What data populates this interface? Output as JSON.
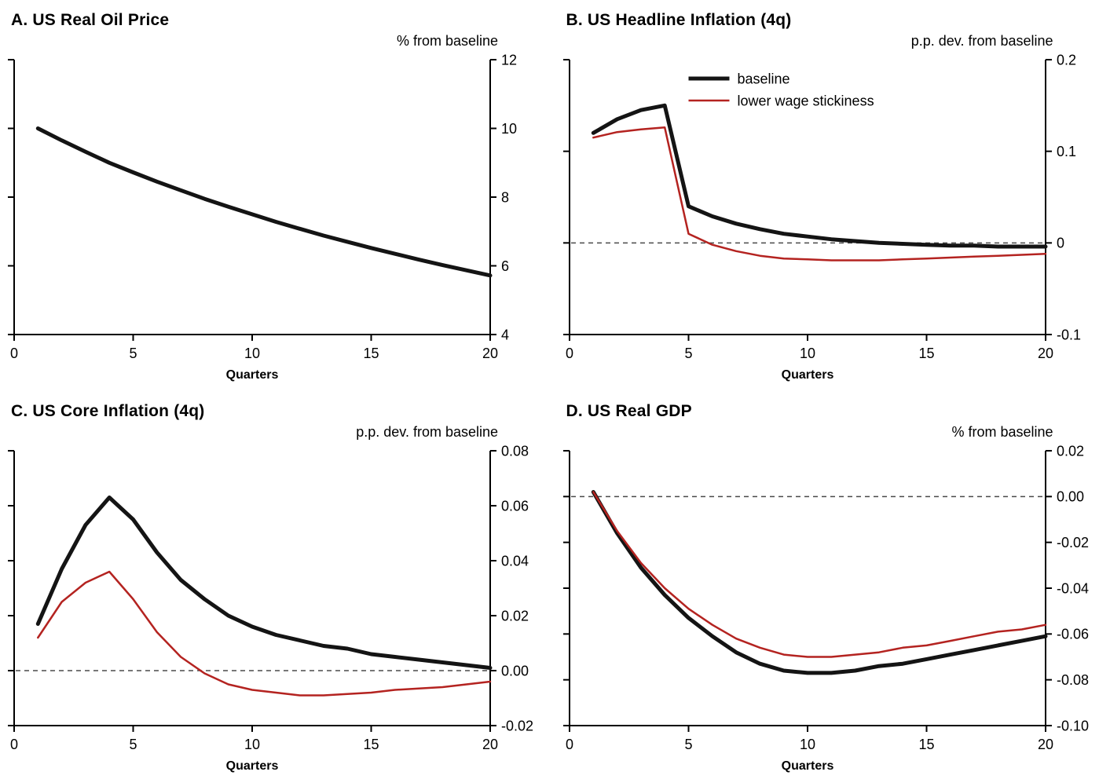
{
  "figure": {
    "background": "#ffffff",
    "accent_black": "#141414",
    "accent_red": "#b42320"
  },
  "chart_data": [
    {
      "id": "a",
      "type": "line",
      "title": "A. US Real Oil Price",
      "unit": "% from baseline",
      "xlabel": "Quarters",
      "xlim": [
        0,
        20
      ],
      "xticks": [
        0,
        5,
        10,
        15,
        20
      ],
      "xtick_labels": [
        "0",
        "5",
        "10",
        "15",
        "20"
      ],
      "ylim": [
        4,
        12
      ],
      "yticks": [
        4,
        6,
        8,
        10,
        12
      ],
      "ytick_labels": [
        "4",
        "6",
        "8",
        "10",
        "12"
      ],
      "zero_line": false,
      "series": [
        {
          "name": "baseline",
          "color": "#141414",
          "width": 5,
          "x_start": 1,
          "values": [
            10.0,
            9.65,
            9.32,
            9.0,
            8.72,
            8.45,
            8.2,
            7.95,
            7.72,
            7.5,
            7.28,
            7.08,
            6.88,
            6.7,
            6.52,
            6.35,
            6.18,
            6.02,
            5.87,
            5.72
          ]
        }
      ]
    },
    {
      "id": "b",
      "type": "line",
      "title": "B. US Headline Inflation (4q)",
      "unit": "p.p. dev. from baseline",
      "xlabel": "Quarters",
      "xlim": [
        0,
        20
      ],
      "xticks": [
        0,
        5,
        10,
        15,
        20
      ],
      "xtick_labels": [
        "0",
        "5",
        "10",
        "15",
        "20"
      ],
      "ylim": [
        -0.1,
        0.2
      ],
      "yticks": [
        -0.1,
        0,
        0.1,
        0.2
      ],
      "ytick_labels": [
        "-0.1",
        "0",
        "0.1",
        "0.2"
      ],
      "zero_line": true,
      "legend": [
        {
          "label": "baseline",
          "color": "#141414",
          "width": 5
        },
        {
          "label": "lower wage stickiness",
          "color": "#b42320",
          "width": 2.5
        }
      ],
      "series": [
        {
          "name": "baseline",
          "color": "#141414",
          "width": 5,
          "x_start": 1,
          "values": [
            0.12,
            0.135,
            0.145,
            0.15,
            0.04,
            0.029,
            0.021,
            0.015,
            0.01,
            0.007,
            0.004,
            0.002,
            0.0,
            -0.001,
            -0.002,
            -0.003,
            -0.003,
            -0.004,
            -0.004,
            -0.004
          ]
        },
        {
          "name": "lower wage stickiness",
          "color": "#b42320",
          "width": 2.5,
          "x_start": 1,
          "values": [
            0.115,
            0.121,
            0.124,
            0.126,
            0.01,
            -0.002,
            -0.009,
            -0.014,
            -0.017,
            -0.018,
            -0.019,
            -0.019,
            -0.019,
            -0.018,
            -0.017,
            -0.016,
            -0.015,
            -0.014,
            -0.013,
            -0.012
          ]
        }
      ]
    },
    {
      "id": "c",
      "type": "line",
      "title": "C. US Core Inflation (4q)",
      "unit": "p.p. dev. from baseline",
      "xlabel": "Quarters",
      "xlim": [
        0,
        20
      ],
      "xticks": [
        0,
        5,
        10,
        15,
        20
      ],
      "xtick_labels": [
        "0",
        "5",
        "10",
        "15",
        "20"
      ],
      "ylim": [
        -0.02,
        0.08
      ],
      "yticks": [
        -0.02,
        0,
        0.02,
        0.04,
        0.06,
        0.08
      ],
      "ytick_labels": [
        "-0.02",
        "0.00",
        "0.02",
        "0.04",
        "0.06",
        "0.08"
      ],
      "zero_line": true,
      "series": [
        {
          "name": "baseline",
          "color": "#141414",
          "width": 5,
          "x_start": 1,
          "values": [
            0.017,
            0.037,
            0.053,
            0.063,
            0.055,
            0.043,
            0.033,
            0.026,
            0.02,
            0.016,
            0.013,
            0.011,
            0.009,
            0.008,
            0.006,
            0.005,
            0.004,
            0.003,
            0.002,
            0.001
          ]
        },
        {
          "name": "lower wage stickiness",
          "color": "#b42320",
          "width": 2.5,
          "x_start": 1,
          "values": [
            0.012,
            0.025,
            0.032,
            0.036,
            0.026,
            0.014,
            0.005,
            -0.001,
            -0.005,
            -0.007,
            -0.008,
            -0.009,
            -0.009,
            -0.0085,
            -0.008,
            -0.007,
            -0.0065,
            -0.006,
            -0.005,
            -0.004
          ]
        }
      ]
    },
    {
      "id": "d",
      "type": "line",
      "title": "D. US Real GDP",
      "unit": "% from baseline",
      "xlabel": "Quarters",
      "xlim": [
        0,
        20
      ],
      "xticks": [
        0,
        5,
        10,
        15,
        20
      ],
      "xtick_labels": [
        "0",
        "5",
        "10",
        "15",
        "20"
      ],
      "ylim": [
        -0.1,
        0.02
      ],
      "yticks": [
        -0.1,
        -0.08,
        -0.06,
        -0.04,
        -0.02,
        0,
        0.02
      ],
      "ytick_labels": [
        "-0.10",
        "-0.08",
        "-0.06",
        "-0.04",
        "-0.02",
        "0.00",
        "0.02"
      ],
      "zero_line": true,
      "series": [
        {
          "name": "baseline",
          "color": "#141414",
          "width": 5,
          "x_start": 1,
          "values": [
            0.002,
            -0.016,
            -0.031,
            -0.043,
            -0.053,
            -0.061,
            -0.068,
            -0.073,
            -0.076,
            -0.077,
            -0.077,
            -0.076,
            -0.074,
            -0.073,
            -0.071,
            -0.069,
            -0.067,
            -0.065,
            -0.063,
            -0.061
          ]
        },
        {
          "name": "lower wage stickiness",
          "color": "#b42320",
          "width": 2.5,
          "x_start": 1,
          "values": [
            0.002,
            -0.015,
            -0.029,
            -0.04,
            -0.049,
            -0.056,
            -0.062,
            -0.066,
            -0.069,
            -0.07,
            -0.07,
            -0.069,
            -0.068,
            -0.066,
            -0.065,
            -0.063,
            -0.061,
            -0.059,
            -0.058,
            -0.056
          ]
        }
      ]
    }
  ]
}
